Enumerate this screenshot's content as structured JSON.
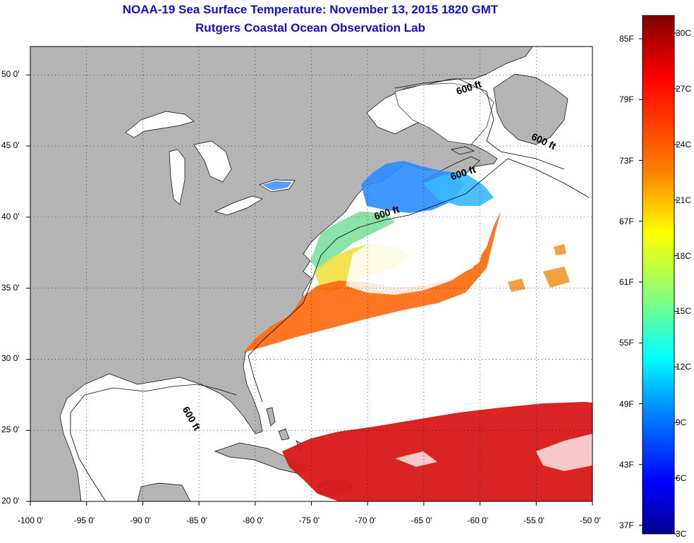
{
  "title": {
    "line1": "NOAA-19 Sea Surface Temperature:  November 13, 2015 1820 GMT",
    "line2": "Rutgers Coastal Ocean Observation Lab"
  },
  "map": {
    "lon_range": [
      -100,
      -50
    ],
    "lat_range": [
      20,
      52
    ],
    "lon_ticks": [
      {
        "value": -100,
        "label": "-100 0'"
      },
      {
        "value": -95,
        "label": "-95 0'"
      },
      {
        "value": -90,
        "label": "-90 0'"
      },
      {
        "value": -85,
        "label": "-85 0'"
      },
      {
        "value": -80,
        "label": "-80 0'"
      },
      {
        "value": -75,
        "label": "-75 0'"
      },
      {
        "value": -70,
        "label": "-70 0'"
      },
      {
        "value": -65,
        "label": "-65 0'"
      },
      {
        "value": -60,
        "label": "-60 0'"
      },
      {
        "value": -55,
        "label": "-55 0'"
      },
      {
        "value": -50,
        "label": "-50 0'"
      }
    ],
    "lat_ticks": [
      {
        "value": 50,
        "label": "50 0'"
      },
      {
        "value": 45,
        "label": "45 0'"
      },
      {
        "value": 40,
        "label": "40 0'"
      },
      {
        "value": 35,
        "label": "35 0'"
      },
      {
        "value": 30,
        "label": "30 0'"
      },
      {
        "value": 25,
        "label": "25 0'"
      },
      {
        "value": 20,
        "label": "20 0'"
      }
    ],
    "land_color": "#b4b4b4",
    "ocean_color": "#ffffff",
    "isobath_labels": [
      {
        "text": "600 ft",
        "lon": -62,
        "lat": 48.6
      },
      {
        "text": "600 ft",
        "lon": -55.5,
        "lat": 45.5
      },
      {
        "text": "600 ft",
        "lon": -62.5,
        "lat": 42.6
      },
      {
        "text": "600 ft",
        "lon": -69.3,
        "lat": 39.8
      },
      {
        "text": "600 ft",
        "lon": -86.5,
        "lat": 26.5
      }
    ]
  },
  "colorbar": {
    "f_labels": [
      "85F",
      "79F",
      "73F",
      "67F",
      "61F",
      "55F",
      "49F",
      "43F",
      "37F"
    ],
    "c_labels": [
      "30C",
      "27C",
      "24C",
      "21C",
      "18C",
      "15C",
      "12C",
      "9C",
      "6C",
      "3C"
    ],
    "colors": [
      "#7f0000",
      "#ff0000",
      "#ff8000",
      "#ffff00",
      "#80ff80",
      "#00ffff",
      "#0080ff",
      "#0000ff",
      "#00008f"
    ]
  }
}
